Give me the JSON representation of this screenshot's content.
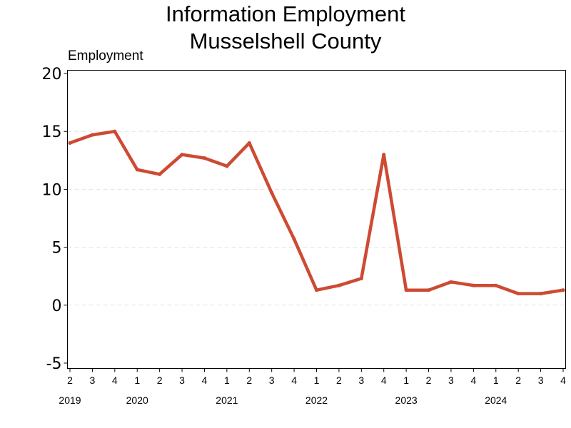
{
  "chart_data": {
    "type": "line",
    "title_lines": [
      "Information Employment",
      "Musselshell County"
    ],
    "ylabel": "Employment",
    "xlabel": "",
    "ylim": [
      -5,
      20
    ],
    "yticks": [
      -5,
      0,
      5,
      10,
      15,
      20
    ],
    "grid": true,
    "legend": "none",
    "x": [
      {
        "quarter": "2",
        "year": "2019"
      },
      {
        "quarter": "3",
        "year": ""
      },
      {
        "quarter": "4",
        "year": ""
      },
      {
        "quarter": "1",
        "year": "2020"
      },
      {
        "quarter": "2",
        "year": ""
      },
      {
        "quarter": "3",
        "year": ""
      },
      {
        "quarter": "4",
        "year": ""
      },
      {
        "quarter": "1",
        "year": "2021"
      },
      {
        "quarter": "2",
        "year": ""
      },
      {
        "quarter": "3",
        "year": ""
      },
      {
        "quarter": "4",
        "year": ""
      },
      {
        "quarter": "1",
        "year": "2022"
      },
      {
        "quarter": "2",
        "year": ""
      },
      {
        "quarter": "3",
        "year": ""
      },
      {
        "quarter": "4",
        "year": ""
      },
      {
        "quarter": "1",
        "year": "2023"
      },
      {
        "quarter": "2",
        "year": ""
      },
      {
        "quarter": "3",
        "year": ""
      },
      {
        "quarter": "4",
        "year": ""
      },
      {
        "quarter": "1",
        "year": "2024"
      },
      {
        "quarter": "2",
        "year": ""
      },
      {
        "quarter": "3",
        "year": ""
      },
      {
        "quarter": "4",
        "year": ""
      }
    ],
    "series": [
      {
        "color": "#cd4a33",
        "values": [
          14,
          14.7,
          15,
          11.7,
          11.3,
          13,
          12.7,
          12,
          14,
          9.7,
          5.7,
          1.3,
          1.7,
          2.3,
          13,
          1.3,
          1.3,
          2,
          1.7,
          1.7,
          1,
          1,
          1.3
        ]
      }
    ]
  }
}
